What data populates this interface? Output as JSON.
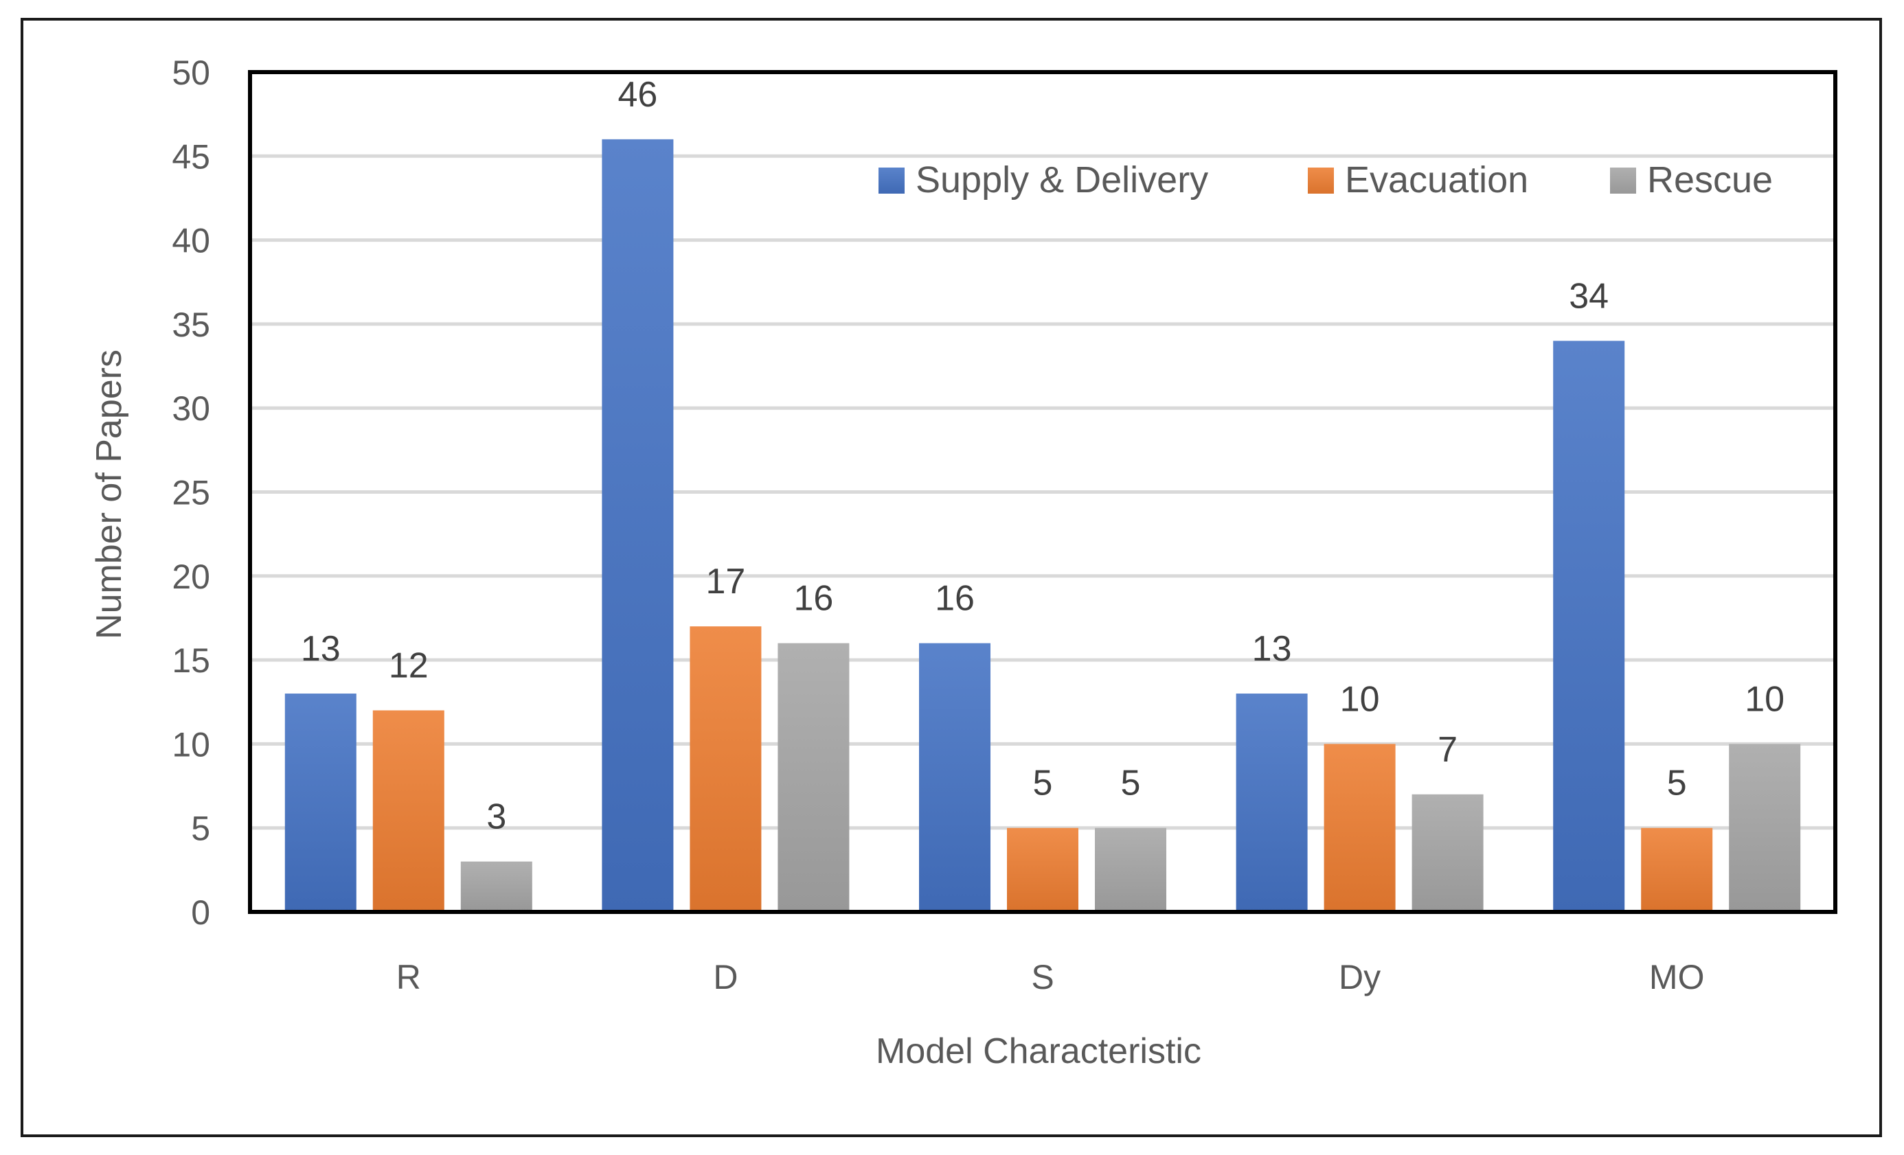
{
  "chart_data": {
    "type": "bar",
    "title": "",
    "xlabel": "Model Characteristic",
    "ylabel": "Number of Papers",
    "categories": [
      "R",
      "D",
      "S",
      "Dy",
      "MO"
    ],
    "series": [
      {
        "name": "Supply & Delivery",
        "values": [
          13,
          46,
          16,
          13,
          34
        ],
        "color": "#4472c4"
      },
      {
        "name": "Evacuation",
        "values": [
          12,
          17,
          5,
          10,
          5
        ],
        "color": "#ed7d31"
      },
      {
        "name": "Rescue",
        "values": [
          3,
          16,
          5,
          7,
          10
        ],
        "color": "#a5a5a5"
      }
    ],
    "ylim": [
      0,
      50
    ],
    "yticks": [
      0,
      5,
      10,
      15,
      20,
      25,
      30,
      35,
      40,
      45,
      50
    ],
    "grid": true,
    "legend_position": "top-right"
  }
}
